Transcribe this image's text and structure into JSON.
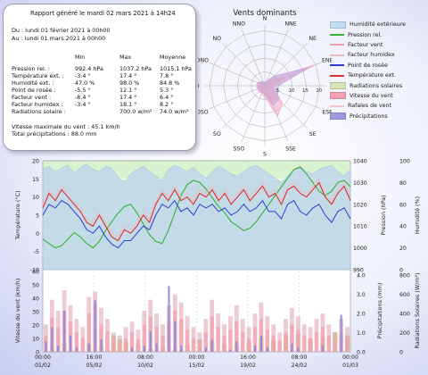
{
  "summary": {
    "title": "Rapport généré le mardi 02 mars 2021 à 14h24",
    "period_from": "Du : lundi 01 février 2021 à 00h00",
    "period_to": "Au : lundi 01 mars 2021 à 00h00",
    "headers": [
      "Min",
      "Max",
      "Moyenne"
    ],
    "rows": [
      {
        "label": "Pression rel. :",
        "min": "992.4 hPa",
        "max": "1037.2 hPa",
        "avg": "1015.1 hPa"
      },
      {
        "label": "Température ext. :",
        "min": "-3.4 °",
        "max": "17.4 °",
        "avg": "7.8 °"
      },
      {
        "label": "Humidité ext. :",
        "min": "47.0 %",
        "max": "98.0 %",
        "avg": "84.8 %"
      },
      {
        "label": "Point de rosée :",
        "min": "-5.5 °",
        "max": "12.1 °",
        "avg": "5.3 °"
      },
      {
        "label": "Facteur vent :",
        "min": "-8.4 °",
        "max": "17.4 °",
        "avg": "6.4 °"
      },
      {
        "label": "Facteur humidex :",
        "min": "-3.4 °",
        "max": "18.1 °",
        "avg": "8.2 °"
      },
      {
        "label": "Radiations solaire :",
        "min": "",
        "max": "700.0 w/m²",
        "avg": "74.0 w/m²"
      }
    ],
    "wind_max": "Vitesse maximale du vent : 45.1 km/h",
    "precip_total": "Total précipitations : 88.0 mm"
  },
  "chart_data": [
    {
      "type": "radar",
      "title": "Vents dominants",
      "directions": [
        "N",
        "NNE",
        "NE",
        "ENE",
        "E",
        "ESE",
        "SE",
        "SSE",
        "S",
        "SSO",
        "SO",
        "OSO",
        "O",
        "ONO",
        "NO",
        "NNO"
      ],
      "radial_ticks": [
        5,
        10,
        15,
        20
      ],
      "rmax": 22,
      "series": [
        {
          "name": "Facteur vent",
          "color": "#e9a0a8",
          "values": [
            1,
            1.5,
            3,
            8,
            3,
            3,
            6,
            7,
            3,
            2.5,
            2,
            2,
            2,
            2,
            1.5,
            1
          ]
        },
        {
          "name": "Vitesse du vent",
          "color": "#f7a6c4",
          "values": [
            1,
            1.5,
            4,
            20,
            4,
            4,
            9,
            12,
            4,
            3,
            3,
            3,
            3,
            3,
            2,
            1.5
          ]
        },
        {
          "name": "Rafales de vent",
          "color": "#b7a8e0",
          "values": [
            1,
            2,
            5,
            17,
            5,
            5,
            7,
            8,
            3,
            2.5,
            2.5,
            2.5,
            2.5,
            2.5,
            2,
            1.5
          ]
        }
      ]
    },
    {
      "type": "line",
      "x_tick_labels": [
        "00:00\n01/02",
        "16:00\n05/02",
        "08:00\n10/02",
        "00:00\n15/02",
        "16:00\n19/02",
        "08:00\n24/02",
        "00:00\n01/03"
      ],
      "ylabel_left": "Température (°C)",
      "ylim_left": [
        -10,
        20
      ],
      "ylabel_right1": "Pression (hPa)",
      "ylim_right1": [
        990,
        1040
      ],
      "ylabel_right2": "Humidité (%)",
      "ylim_right2": [
        0,
        100
      ],
      "series": [
        {
          "name": "Humidité extérieure",
          "color": "#b9d3ee",
          "axis": "right2",
          "values": [
            92,
            95,
            90,
            93,
            96,
            88,
            94,
            97,
            92,
            90,
            95,
            93,
            85,
            80,
            88,
            92,
            95,
            90,
            86,
            82,
            92,
            96,
            93,
            90,
            94,
            88,
            84,
            90,
            95,
            92,
            88,
            86,
            90,
            94,
            96,
            92,
            88,
            84,
            80,
            86,
            92,
            95,
            90,
            88,
            92,
            94,
            96,
            90,
            86,
            92
          ]
        },
        {
          "name": "Pression rel.",
          "color": "#3cb03c",
          "axis": "right1",
          "values": [
            1004,
            1002,
            1000,
            1001,
            1004,
            1007,
            1005,
            1002,
            1000,
            1003,
            1008,
            1012,
            1016,
            1019,
            1020,
            1016,
            1011,
            1006,
            1003,
            1002,
            1008,
            1016,
            1024,
            1029,
            1031,
            1030,
            1027,
            1023,
            1019,
            1016,
            1012,
            1010,
            1008,
            1009,
            1012,
            1016,
            1020,
            1024,
            1028,
            1032,
            1036,
            1037,
            1034,
            1030,
            1026,
            1024,
            1026,
            1030,
            1031,
            1028
          ]
        },
        {
          "name": "Température ext.",
          "color": "#e23030",
          "axis": "left",
          "values": [
            7,
            11,
            9,
            12,
            10,
            8,
            6,
            3,
            2,
            5,
            2,
            -1,
            -2,
            1,
            0,
            2,
            5,
            3,
            8,
            11,
            9,
            12,
            9,
            10,
            8,
            11,
            10,
            12,
            9,
            11,
            8,
            10,
            12,
            9,
            11,
            13,
            10,
            11,
            8,
            12,
            13,
            11,
            10,
            12,
            14,
            10,
            8,
            11,
            13,
            9
          ]
        },
        {
          "name": "Point de rosée",
          "color": "#2e3cd8",
          "axis": "left",
          "values": [
            5,
            8,
            7,
            9,
            8,
            6,
            4,
            1,
            0,
            2,
            -1,
            -3,
            -4,
            -2,
            -2,
            0,
            2,
            1,
            5,
            8,
            7,
            9,
            6,
            7,
            5,
            8,
            7,
            8,
            6,
            7,
            5,
            6,
            8,
            6,
            7,
            9,
            6,
            6,
            4,
            8,
            9,
            6,
            5,
            7,
            8,
            5,
            3,
            6,
            7,
            4
          ]
        },
        {
          "name": "Facteur humidex",
          "color": "#f0b8c0",
          "axis": "left",
          "values": [
            8,
            12,
            10,
            13,
            11,
            9,
            7,
            4,
            3,
            6,
            3,
            0,
            -1,
            2,
            1,
            3,
            6,
            4,
            9,
            12,
            10,
            13,
            10,
            11,
            9,
            12,
            11,
            13,
            10,
            12,
            9,
            11,
            13,
            10,
            12,
            14,
            11,
            12,
            9,
            13,
            14,
            12,
            11,
            13,
            15,
            11,
            9,
            12,
            14,
            10
          ]
        }
      ]
    },
    {
      "type": "bar",
      "ylabel_left": "Vitesse du vent (km/h)",
      "ylabel_right1": "Précipitations (mm)",
      "ylim_right1": [
        0,
        4
      ],
      "ylabel_right2": "Radiations Solaires (W/m²)",
      "ylim_right2": [
        0,
        1000
      ],
      "series": [
        {
          "name": "Vitesse du vent",
          "color": "#f4a0b0",
          "values": [
            12,
            25,
            18,
            30,
            22,
            14,
            10,
            28,
            35,
            20,
            15,
            8,
            6,
            10,
            14,
            9,
            20,
            26,
            18,
            12,
            22,
            30,
            24,
            16,
            10,
            8,
            14,
            26,
            18,
            12,
            16,
            22,
            14,
            10,
            18,
            24,
            16,
            12,
            8,
            14,
            20,
            16,
            12,
            10,
            14,
            18,
            12,
            8,
            14,
            10
          ]
        },
        {
          "name": "Rafales de vent",
          "color": "#d88aa0",
          "values": [
            20,
            38,
            30,
            45,
            34,
            24,
            18,
            40,
            44,
            32,
            24,
            14,
            12,
            18,
            22,
            16,
            30,
            38,
            28,
            20,
            34,
            42,
            36,
            26,
            18,
            14,
            24,
            38,
            28,
            20,
            26,
            34,
            24,
            18,
            28,
            36,
            26,
            20,
            14,
            24,
            32,
            26,
            20,
            18,
            24,
            28,
            20,
            14,
            24,
            18
          ]
        },
        {
          "name": "Précipitations",
          "color": "#8a86d8",
          "values": [
            0.5,
            1.2,
            0.3,
            2.0,
            0.8,
            0.2,
            0,
            0.4,
            2.5,
            0.6,
            0,
            0,
            0,
            0,
            0.2,
            0,
            0.3,
            1.0,
            0.4,
            0,
            3.2,
            1.5,
            0.3,
            0,
            0,
            0,
            0.2,
            0.6,
            0,
            0,
            0.1,
            0.5,
            0,
            0,
            0.3,
            0.8,
            0.2,
            0,
            0,
            0,
            0.4,
            0.2,
            0,
            0,
            0,
            0.3,
            0,
            0,
            1.8,
            0
          ]
        },
        {
          "name": "Radiations solaires",
          "color": "#c8c878",
          "values": [
            0,
            50,
            0,
            100,
            20,
            0,
            0,
            80,
            0,
            60,
            0,
            200,
            150,
            120,
            0,
            90,
            0,
            40,
            0,
            60,
            0,
            30,
            0,
            80,
            0,
            150,
            0,
            120,
            0,
            100,
            0,
            90,
            0,
            110,
            0,
            180,
            0,
            140,
            0,
            200,
            0,
            220,
            0,
            160,
            0,
            180,
            0,
            240,
            0,
            200
          ]
        }
      ]
    }
  ],
  "legend": [
    {
      "label": "Humidité extérieure",
      "color": "#c4dcf2",
      "kind": "fill"
    },
    {
      "label": "Pression rel.",
      "color": "#3cb03c",
      "kind": "line"
    },
    {
      "label": "Facteur vent",
      "color": "#e9a0a8",
      "kind": "line"
    },
    {
      "label": "Facteur humidex",
      "color": "#f0b8c0",
      "kind": "line"
    },
    {
      "label": "Point de rosée",
      "color": "#2e3cd8",
      "kind": "line"
    },
    {
      "label": "Température ext.",
      "color": "#e23030",
      "kind": "line"
    },
    {
      "label": "Radiations solaires",
      "color": "#d7e6b8",
      "kind": "fill"
    },
    {
      "label": "Vitesse du vent",
      "color": "#f4a0b0",
      "kind": "fill"
    },
    {
      "label": "Rafales de vent",
      "color": "#f6c6cf",
      "kind": "line"
    },
    {
      "label": "Précipitations",
      "color": "#9e9ae0",
      "kind": "fill"
    }
  ],
  "axes": {
    "temp_ticks": [
      "20",
      "15",
      "10",
      "5",
      "0",
      "-5",
      "-10"
    ],
    "press_ticks": [
      "1040",
      "1030",
      "1020",
      "1010",
      "1000",
      "990"
    ],
    "hum_ticks": [
      "100",
      "80",
      "60",
      "40",
      "20",
      "0"
    ],
    "wind_ticks": [
      "60",
      "50",
      "40",
      "30",
      "20",
      "10",
      "0"
    ],
    "precip_ticks": [
      "4.0",
      "3.0",
      "2.0",
      "1.0",
      "0.0"
    ],
    "rad_ticks": [
      "800",
      "600",
      "400",
      "200",
      "0"
    ]
  }
}
